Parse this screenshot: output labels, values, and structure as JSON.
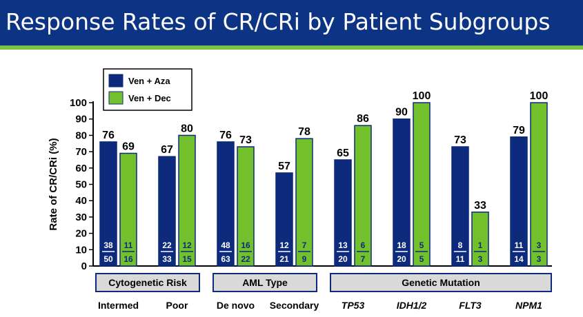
{
  "title": "Response Rates of CR/CRi by Patient Subgroups",
  "chart_data": {
    "type": "bar",
    "ylabel": "Rate of CR/CRi (%)",
    "ylim": [
      0,
      100
    ],
    "yticks": [
      0,
      10,
      20,
      30,
      40,
      50,
      60,
      70,
      80,
      90,
      100
    ],
    "legend_position": "top-left",
    "series": [
      {
        "name": "Ven + Aza",
        "color": "#0d2a7c"
      },
      {
        "name": "Ven +  Dec",
        "color": "#72c02c"
      }
    ],
    "categories": [
      {
        "label": "Intermed",
        "italic": false,
        "aza": 76,
        "dec": 69,
        "aza_n": "38",
        "aza_d": "50",
        "dec_n": "11",
        "dec_d": "16"
      },
      {
        "label": "Poor",
        "italic": false,
        "aza": 67,
        "dec": 80,
        "aza_n": "22",
        "aza_d": "33",
        "dec_n": "12",
        "dec_d": "15"
      },
      {
        "label": "De novo",
        "italic": false,
        "aza": 76,
        "dec": 73,
        "aza_n": "48",
        "aza_d": "63",
        "dec_n": "16",
        "dec_d": "22"
      },
      {
        "label": "Secondary",
        "italic": false,
        "aza": 57,
        "dec": 78,
        "aza_n": "12",
        "aza_d": "21",
        "dec_n": "7",
        "dec_d": "9"
      },
      {
        "label": "TP53",
        "italic": true,
        "aza": 65,
        "dec": 86,
        "aza_n": "13",
        "aza_d": "20",
        "dec_n": "6",
        "dec_d": "7"
      },
      {
        "label": "IDH1/2",
        "italic": true,
        "aza": 90,
        "dec": 100,
        "aza_n": "18",
        "aza_d": "20",
        "dec_n": "5",
        "dec_d": "5"
      },
      {
        "label": "FLT3",
        "italic": true,
        "aza": 73,
        "dec": 33,
        "aza_n": "8",
        "aza_d": "11",
        "dec_n": "1",
        "dec_d": "3"
      },
      {
        "label": "NPM1",
        "italic": true,
        "aza": 79,
        "dec": 100,
        "aza_n": "11",
        "aza_d": "14",
        "dec_n": "3",
        "dec_d": "3"
      }
    ],
    "groups": [
      {
        "label": "Cytogenetic  Risk",
        "categories": [
          0,
          1
        ]
      },
      {
        "label": "AML Type",
        "categories": [
          2,
          3
        ]
      },
      {
        "label": "Genetic Mutation",
        "categories": [
          4,
          5,
          6,
          7
        ]
      }
    ]
  }
}
